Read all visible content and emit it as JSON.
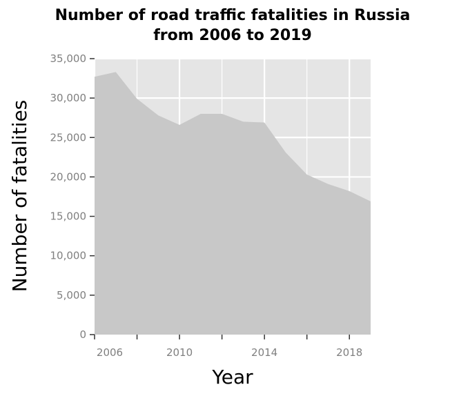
{
  "chart_data": {
    "type": "area",
    "title_lines": [
      "Number of road traffic fatalities in Russia",
      "from 2006 to 2019"
    ],
    "xlabel": "Year",
    "ylabel": "Number of fatalities",
    "x": [
      2006,
      2007,
      2008,
      2009,
      2010,
      2011,
      2012,
      2013,
      2014,
      2015,
      2016,
      2017,
      2018,
      2019
    ],
    "series": [
      {
        "values": [
          32700,
          33300,
          29900,
          27800,
          26600,
          28000,
          28000,
          27000,
          26900,
          23100,
          20300,
          19100,
          18200,
          16900
        ]
      }
    ],
    "xlim": [
      2006,
      2019
    ],
    "ylim": [
      0,
      35000
    ],
    "x_ticks": [
      2006,
      2010,
      2014,
      2018
    ],
    "x_tick_labels": [
      "2006",
      "2010",
      "2014",
      "2018"
    ],
    "y_ticks": [
      0,
      5000,
      10000,
      15000,
      20000,
      25000,
      30000,
      35000
    ],
    "y_tick_labels": [
      "0",
      "5,000",
      "10,000",
      "15,000",
      "20,000",
      "25,000",
      "30,000",
      "35,000"
    ],
    "grid": true,
    "colors": {
      "panel": "#e5e5e5",
      "grid": "#ffffff",
      "area": "#c8c8c8"
    }
  }
}
